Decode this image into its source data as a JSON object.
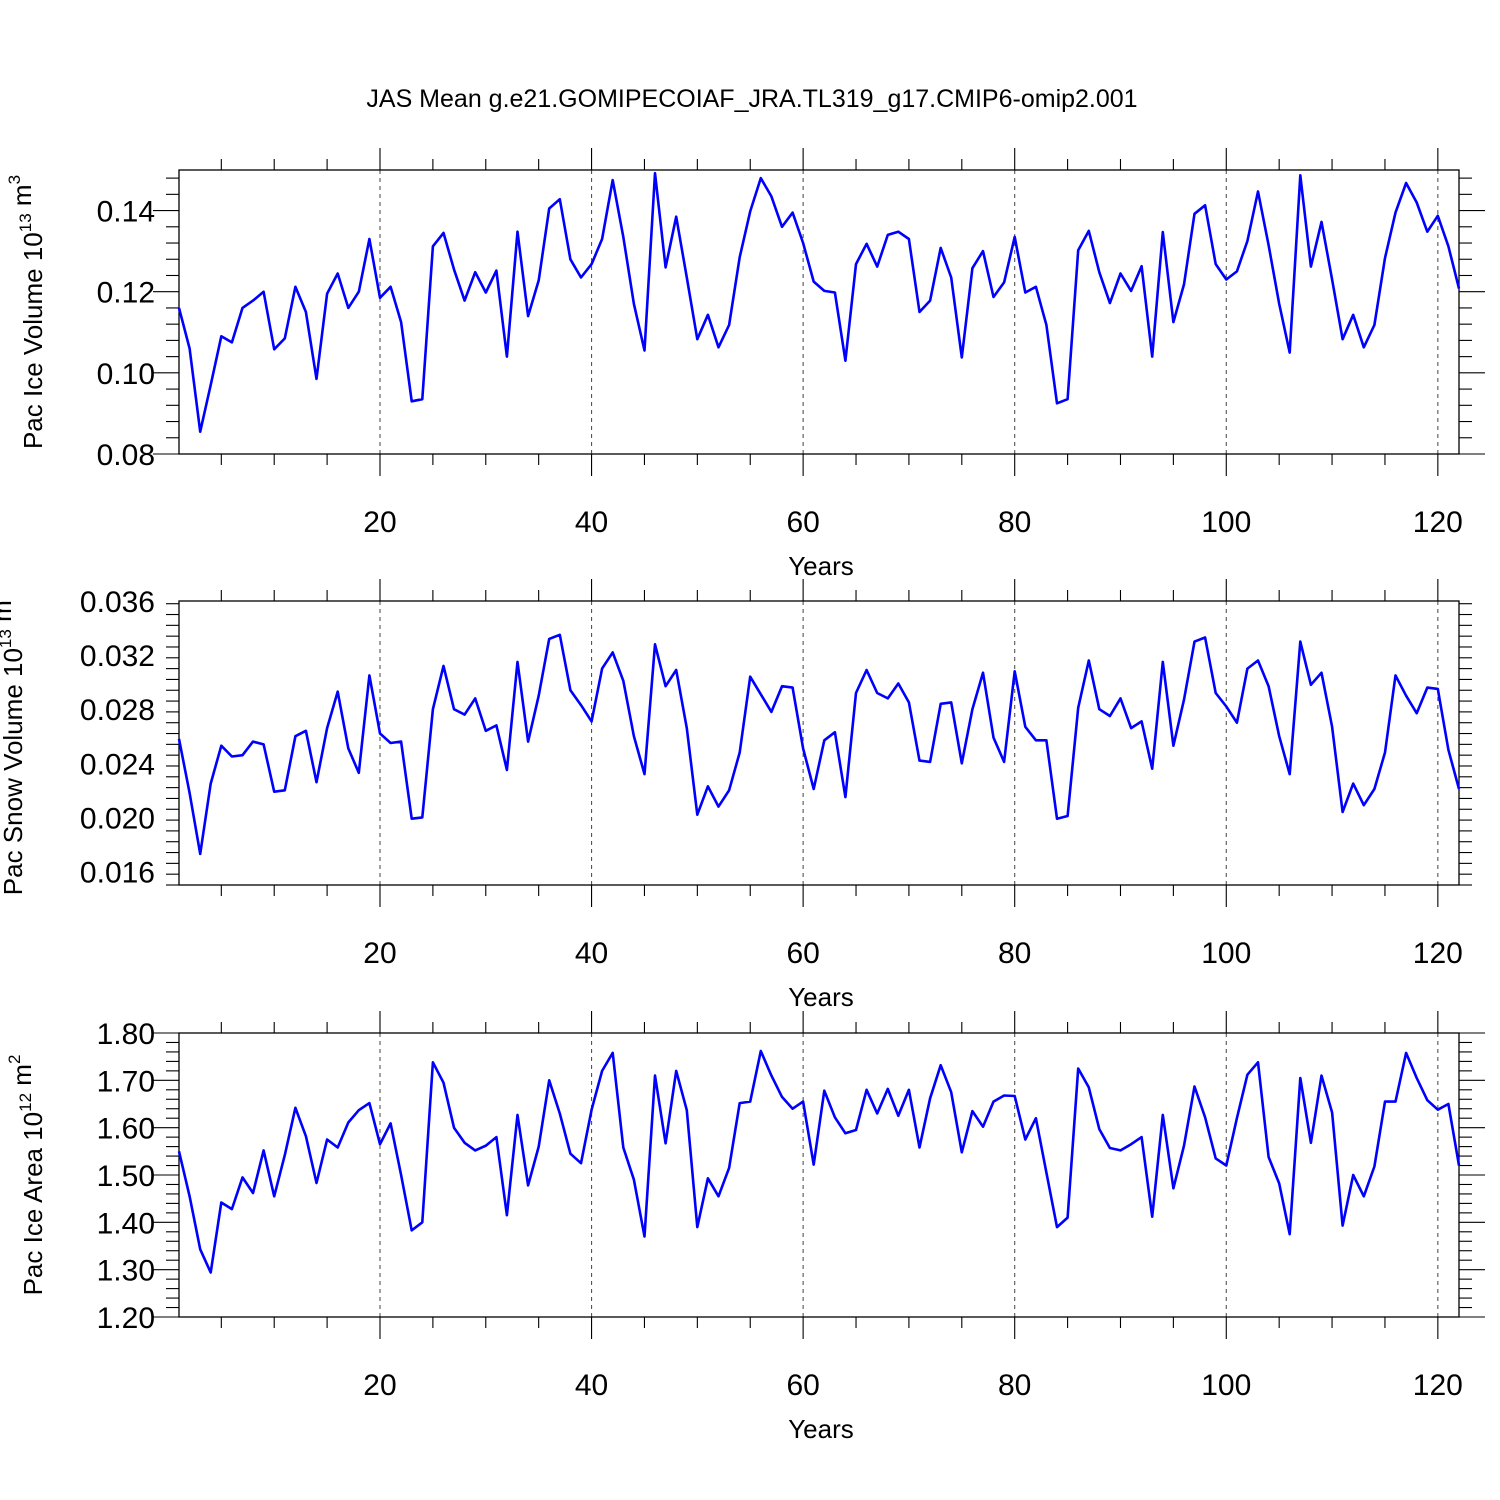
{
  "title": "JAS Mean g.e21.GOMIPECOIAF_JRA.TL319_g17.CMIP6-omip2.001",
  "line_color": "#0000ff",
  "chart_data": [
    {
      "type": "line",
      "ylabel": "Pac Ice Volume 10",
      "ylabel_exp": "13",
      "ylabel_unit": " m",
      "ylabel_unit_exp": "3",
      "xlabel": "Years",
      "xlim": [
        1,
        122
      ],
      "ylim": [
        0.08,
        0.15
      ],
      "xticks": [
        20,
        40,
        60,
        80,
        100,
        120
      ],
      "xtick_labels": [
        "20",
        "40",
        "60",
        "80",
        "100",
        "120"
      ],
      "yticks": [
        0.08,
        0.1,
        0.12,
        0.14
      ],
      "ytick_labels": [
        "0.08",
        "0.10",
        "0.12",
        "0.14"
      ],
      "reference_lines_x": [
        20,
        40,
        60,
        80,
        100,
        120
      ],
      "values": [
        0.116,
        0.106,
        0.0855,
        0.097,
        0.109,
        0.1075,
        0.116,
        0.1178,
        0.12,
        0.1058,
        0.1085,
        0.1212,
        0.115,
        0.0985,
        0.1195,
        0.1245,
        0.116,
        0.12,
        0.133,
        0.1185,
        0.1212,
        0.1125,
        0.093,
        0.0935,
        0.1312,
        0.1345,
        0.1255,
        0.1178,
        0.1248,
        0.1198,
        0.1252,
        0.104,
        0.1348,
        0.114,
        0.1228,
        0.1405,
        0.1428,
        0.128,
        0.1235,
        0.1268,
        0.133,
        0.1475,
        0.1335,
        0.117,
        0.1055,
        0.1492,
        0.126,
        0.1385,
        0.1235,
        0.1083,
        0.1143,
        0.1063,
        0.1118,
        0.1285,
        0.1398,
        0.148,
        0.1435,
        0.136,
        0.1395,
        0.132,
        0.1225,
        0.1202,
        0.1198,
        0.103,
        0.1268,
        0.1318,
        0.1262,
        0.134,
        0.1348,
        0.133,
        0.115,
        0.1178,
        0.1308,
        0.1235,
        0.1038,
        0.1258,
        0.13,
        0.1187,
        0.1223,
        0.1335,
        0.1198,
        0.1212,
        0.1118,
        0.0925,
        0.0935,
        0.1302,
        0.135,
        0.1248,
        0.1172,
        0.1245,
        0.1202,
        0.1263,
        0.104,
        0.1347,
        0.1125,
        0.1218,
        0.1392,
        0.1413,
        0.1268,
        0.123,
        0.125,
        0.1325,
        0.1447,
        0.1315,
        0.117,
        0.105,
        0.1487,
        0.1262,
        0.1372,
        0.123,
        0.1083,
        0.1143,
        0.1063,
        0.1118,
        0.1283,
        0.1395,
        0.1468,
        0.142,
        0.1348,
        0.1387,
        0.1312,
        0.1208
      ]
    },
    {
      "type": "line",
      "ylabel": "Pac Snow Volume 10",
      "ylabel_exp": "13",
      "ylabel_unit": " m",
      "ylabel_unit_exp": "3",
      "xlabel": "Years",
      "xlim": [
        1,
        122
      ],
      "ylim": [
        0.015,
        0.036
      ],
      "xticks": [
        20,
        40,
        60,
        80,
        100,
        120
      ],
      "xtick_labels": [
        "20",
        "40",
        "60",
        "80",
        "100",
        "120"
      ],
      "yticks": [
        0.016,
        0.02,
        0.024,
        0.028,
        0.032,
        0.036
      ],
      "ytick_labels": [
        "0.016",
        "0.020",
        "0.024",
        "0.028",
        "0.032",
        "0.036"
      ],
      "reference_lines_x": [
        20,
        40,
        60,
        80,
        100,
        120
      ],
      "values": [
        0.0258,
        0.0218,
        0.0173,
        0.0225,
        0.0253,
        0.0245,
        0.0246,
        0.0256,
        0.0254,
        0.0219,
        0.022,
        0.026,
        0.0264,
        0.0226,
        0.0266,
        0.0293,
        0.0251,
        0.0233,
        0.0305,
        0.0262,
        0.0255,
        0.0256,
        0.0199,
        0.02,
        0.028,
        0.0312,
        0.028,
        0.0276,
        0.0288,
        0.0264,
        0.0268,
        0.0235,
        0.0315,
        0.0256,
        0.029,
        0.0332,
        0.0335,
        0.0294,
        0.0283,
        0.0271,
        0.031,
        0.0322,
        0.0301,
        0.026,
        0.0232,
        0.0328,
        0.0297,
        0.0309,
        0.0266,
        0.0202,
        0.0223,
        0.0208,
        0.022,
        0.0248,
        0.0304,
        0.0291,
        0.0278,
        0.0297,
        0.0296,
        0.0251,
        0.0221,
        0.0257,
        0.0263,
        0.0215,
        0.0292,
        0.0309,
        0.0292,
        0.0288,
        0.0299,
        0.0285,
        0.0242,
        0.0241,
        0.0284,
        0.0285,
        0.024,
        0.028,
        0.0307,
        0.0259,
        0.0241,
        0.0308,
        0.0267,
        0.0257,
        0.0257,
        0.0199,
        0.0201,
        0.0281,
        0.0316,
        0.028,
        0.0275,
        0.0288,
        0.0266,
        0.0271,
        0.0236,
        0.0315,
        0.0253,
        0.0287,
        0.033,
        0.0333,
        0.0292,
        0.0282,
        0.027,
        0.031,
        0.0316,
        0.0297,
        0.026,
        0.0232,
        0.033,
        0.0298,
        0.0307,
        0.0267,
        0.0204,
        0.0225,
        0.0209,
        0.0221,
        0.0248,
        0.0305,
        0.029,
        0.0277,
        0.0296,
        0.0295,
        0.025,
        0.0221
      ]
    },
    {
      "type": "line",
      "ylabel": "Pac Ice Area 10",
      "ylabel_exp": "12",
      "ylabel_unit": " m",
      "ylabel_unit_exp": "2",
      "xlabel": "Years",
      "xlim": [
        1,
        122
      ],
      "ylim": [
        1.2,
        1.8
      ],
      "xticks": [
        20,
        40,
        60,
        80,
        100,
        120
      ],
      "xtick_labels": [
        "20",
        "40",
        "60",
        "80",
        "100",
        "120"
      ],
      "yticks": [
        1.2,
        1.3,
        1.4,
        1.5,
        1.6,
        1.7,
        1.8
      ],
      "ytick_labels": [
        "1.20",
        "1.30",
        "1.40",
        "1.50",
        "1.60",
        "1.70",
        "1.80"
      ],
      "reference_lines_x": [
        20,
        40,
        60,
        80,
        100,
        120
      ],
      "values": [
        1.55,
        1.455,
        1.343,
        1.294,
        1.442,
        1.428,
        1.495,
        1.462,
        1.552,
        1.455,
        1.542,
        1.642,
        1.582,
        1.483,
        1.575,
        1.558,
        1.611,
        1.637,
        1.652,
        1.565,
        1.609,
        1.5,
        1.383,
        1.4,
        1.738,
        1.695,
        1.6,
        1.568,
        1.552,
        1.562,
        1.58,
        1.415,
        1.627,
        1.478,
        1.56,
        1.7,
        1.63,
        1.545,
        1.525,
        1.638,
        1.72,
        1.758,
        1.558,
        1.49,
        1.37,
        1.71,
        1.567,
        1.72,
        1.637,
        1.39,
        1.493,
        1.455,
        1.515,
        1.652,
        1.655,
        1.762,
        1.71,
        1.665,
        1.64,
        1.655,
        1.522,
        1.678,
        1.622,
        1.588,
        1.595,
        1.68,
        1.63,
        1.682,
        1.625,
        1.68,
        1.558,
        1.662,
        1.732,
        1.675,
        1.548,
        1.635,
        1.602,
        1.655,
        1.668,
        1.667,
        1.575,
        1.62,
        1.505,
        1.39,
        1.41,
        1.725,
        1.685,
        1.597,
        1.557,
        1.552,
        1.565,
        1.58,
        1.412,
        1.627,
        1.472,
        1.562,
        1.687,
        1.622,
        1.535,
        1.52,
        1.62,
        1.712,
        1.738,
        1.538,
        1.482,
        1.375,
        1.705,
        1.568,
        1.71,
        1.632,
        1.393,
        1.5,
        1.455,
        1.518,
        1.655,
        1.655,
        1.758,
        1.705,
        1.658,
        1.638,
        1.65,
        1.52
      ]
    }
  ]
}
